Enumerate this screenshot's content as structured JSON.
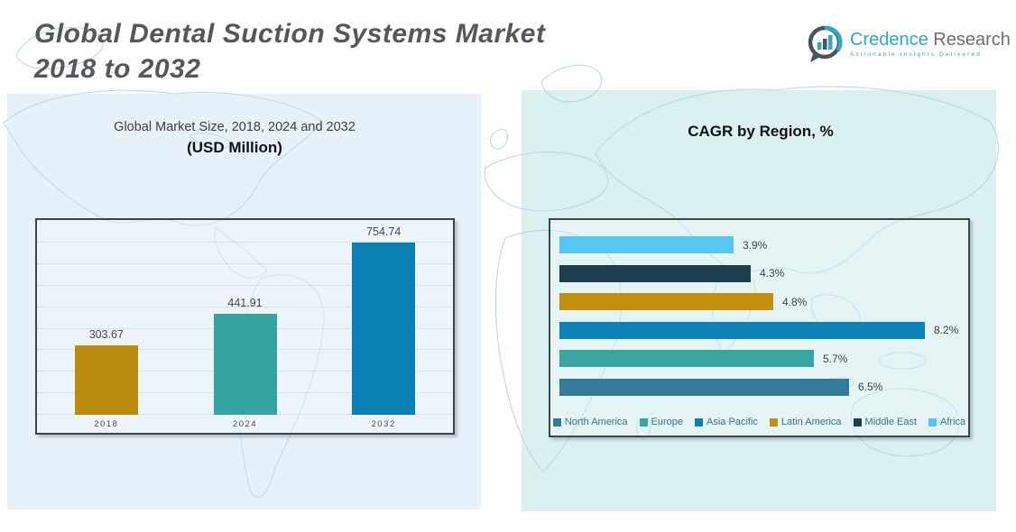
{
  "header": {
    "title_line1": "Global Dental Suction Systems Market",
    "title_line2": "2018 to 2032"
  },
  "logo": {
    "brand_primary": "Credence",
    "brand_secondary": "Research",
    "tagline": "Actionable Insights Delivered",
    "icon": "bar-chart-bubble-icon",
    "accent_color": "#2ba9c7",
    "dark_color": "#4d5357",
    "gray_color": "#6d6e71"
  },
  "left_chart": {
    "title": "Global Market Size, 2018, 2024 and 2032",
    "subtitle": "(USD Million)"
  },
  "right_chart": {
    "title": "CAGR by Region, %"
  },
  "chart_data": [
    {
      "type": "bar",
      "title": "Global Market Size, 2018, 2024 and 2032 (USD Million)",
      "categories": [
        "2018",
        "2024",
        "2032"
      ],
      "values": [
        303.67,
        441.91,
        754.74
      ],
      "value_labels": [
        "303.67",
        "441.91",
        "754.74"
      ],
      "bar_colors": [
        "#bc8c0e",
        "#35a3a0",
        "#0a80b4"
      ],
      "ylim": [
        0,
        800
      ],
      "grid": true,
      "grid_lines": 8
    },
    {
      "type": "bar-horizontal",
      "title": "CAGR by Region, %",
      "rows_top_to_bottom": [
        {
          "region": "Africa",
          "value": 3.9,
          "label": "3.9%",
          "color": "#56c7f2"
        },
        {
          "region": "Middle East",
          "value": 4.3,
          "label": "4.3%",
          "color": "#1e3d4d"
        },
        {
          "region": "Latin America",
          "value": 4.8,
          "label": "4.8%",
          "color": "#c0900e"
        },
        {
          "region": "Asia Pacific",
          "value": 8.2,
          "label": "8.2%",
          "color": "#0c81b5"
        },
        {
          "region": "Europe",
          "value": 5.7,
          "label": "5.7%",
          "color": "#3aa4a1"
        },
        {
          "region": "North America",
          "value": 6.5,
          "label": "6.5%",
          "color": "#337b9b"
        }
      ],
      "xmax": 8.2,
      "legend_position": "bottom",
      "legend": [
        {
          "label": "North America",
          "color": "#337b9b"
        },
        {
          "label": "Europe",
          "color": "#3aa4a1"
        },
        {
          "label": "Asia Pacific",
          "color": "#0c81b5"
        },
        {
          "label": "Latin America",
          "color": "#c0900e"
        },
        {
          "label": "Middle East",
          "color": "#1e3d4d"
        },
        {
          "label": "Africa",
          "color": "#56c7f2"
        }
      ]
    }
  ]
}
